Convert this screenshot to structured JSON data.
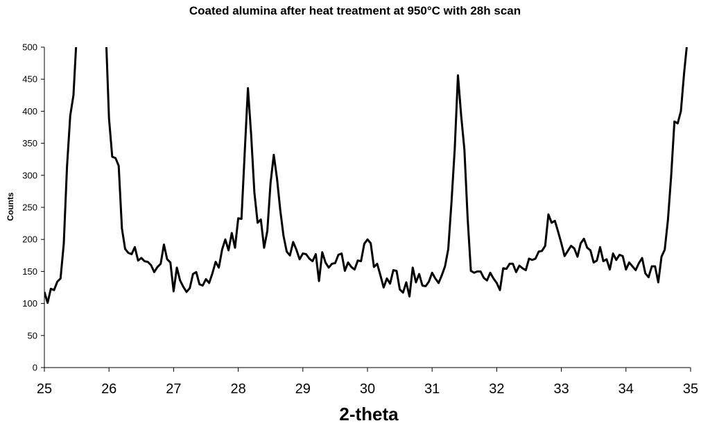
{
  "chart_data": {
    "type": "line",
    "title": "Coated alumina after heat treatment at 950°C with 28h scan",
    "xlabel": "2-theta",
    "ylabel": "Counts",
    "xlim": [
      25,
      35
    ],
    "ylim": [
      0,
      500
    ],
    "x_ticks": [
      25,
      26,
      27,
      28,
      29,
      30,
      31,
      32,
      33,
      34,
      35
    ],
    "y_ticks": [
      0,
      50,
      100,
      150,
      200,
      250,
      300,
      350,
      400,
      450,
      500
    ],
    "grid": false,
    "legend": "none",
    "line_color": "#000000",
    "series": [
      {
        "x": [
          25.0,
          25.05,
          25.1,
          25.15,
          25.2,
          25.25,
          25.3,
          25.35,
          25.4,
          25.45,
          25.49,
          25.5,
          25.95,
          25.96,
          26.0,
          26.05,
          26.1,
          26.15,
          26.2,
          26.25,
          26.3,
          26.35,
          26.4,
          26.45,
          26.5,
          26.55,
          26.6,
          26.65,
          26.7,
          26.75,
          26.8,
          26.85,
          26.9,
          26.95,
          27.0,
          27.05,
          27.1,
          27.15,
          27.2,
          27.25,
          27.3,
          27.35,
          27.4,
          27.45,
          27.5,
          27.55,
          27.6,
          27.65,
          27.7,
          27.75,
          27.8,
          27.85,
          27.9,
          27.95,
          28.0,
          28.05,
          28.1,
          28.15,
          28.2,
          28.25,
          28.3,
          28.35,
          28.4,
          28.45,
          28.5,
          28.55,
          28.6,
          28.65,
          28.7,
          28.75,
          28.8,
          28.85,
          28.9,
          28.95,
          29.0,
          29.05,
          29.1,
          29.15,
          29.2,
          29.25,
          29.3,
          29.35,
          29.4,
          29.45,
          29.5,
          29.55,
          29.6,
          29.65,
          29.7,
          29.75,
          29.8,
          29.85,
          29.9,
          29.95,
          30.0,
          30.05,
          30.1,
          30.15,
          30.2,
          30.25,
          30.3,
          30.35,
          30.4,
          30.45,
          30.5,
          30.55,
          30.6,
          30.65,
          30.7,
          30.75,
          30.8,
          30.85,
          30.9,
          30.95,
          31.0,
          31.05,
          31.1,
          31.15,
          31.2,
          31.25,
          31.3,
          31.35,
          31.4,
          31.45,
          31.5,
          31.55,
          31.6,
          31.65,
          31.7,
          31.75,
          31.8,
          31.85,
          31.9,
          31.95,
          32.0,
          32.05,
          32.1,
          32.15,
          32.2,
          32.25,
          32.3,
          32.35,
          32.4,
          32.45,
          32.5,
          32.55,
          32.6,
          32.65,
          32.7,
          32.75,
          32.8,
          32.85,
          32.9,
          32.95,
          33.0,
          33.05,
          33.1,
          33.15,
          33.2,
          33.25,
          33.3,
          33.35,
          33.4,
          33.45,
          33.5,
          33.55,
          33.6,
          33.65,
          33.7,
          33.75,
          33.8,
          33.85,
          33.9,
          33.95,
          34.0,
          34.05,
          34.1,
          34.15,
          34.2,
          34.25,
          34.3,
          34.35,
          34.4,
          34.45,
          34.5,
          34.55,
          34.6,
          34.65,
          34.7,
          34.75,
          34.8,
          34.85,
          34.9,
          34.94
        ],
        "y": [
          118,
          101,
          123,
          121,
          134,
          139,
          193,
          313,
          393,
          425,
          500,
          510,
          510,
          500,
          389,
          329,
          327,
          315,
          217,
          185,
          179,
          177,
          188,
          167,
          171,
          166,
          165,
          160,
          149,
          157,
          162,
          192,
          169,
          164,
          119,
          156,
          136,
          126,
          118,
          124,
          146,
          149,
          130,
          128,
          138,
          132,
          147,
          165,
          156,
          184,
          200,
          183,
          210,
          187,
          233,
          232,
          335,
          436,
          363,
          273,
          226,
          231,
          187,
          213,
          288,
          332,
          295,
          246,
          206,
          181,
          175,
          196,
          184,
          169,
          178,
          177,
          170,
          166,
          177,
          135,
          180,
          164,
          156,
          162,
          163,
          176,
          178,
          151,
          164,
          157,
          153,
          167,
          166,
          193,
          200,
          194,
          157,
          162,
          144,
          125,
          139,
          131,
          152,
          151,
          122,
          117,
          133,
          111,
          156,
          133,
          146,
          128,
          127,
          134,
          148,
          139,
          132,
          144,
          158,
          185,
          258,
          341,
          456,
          393,
          340,
          233,
          151,
          148,
          150,
          150,
          140,
          136,
          148,
          139,
          132,
          121,
          155,
          154,
          162,
          162,
          149,
          159,
          155,
          152,
          170,
          168,
          170,
          181,
          182,
          190,
          239,
          226,
          229,
          212,
          194,
          174,
          182,
          190,
          186,
          173,
          194,
          201,
          187,
          183,
          164,
          167,
          188,
          166,
          169,
          153,
          178,
          168,
          176,
          174,
          153,
          164,
          158,
          152,
          163,
          171,
          147,
          141,
          158,
          158,
          133,
          173,
          184,
          231,
          300,
          384,
          381,
          400,
          460,
          500
        ]
      }
    ]
  }
}
